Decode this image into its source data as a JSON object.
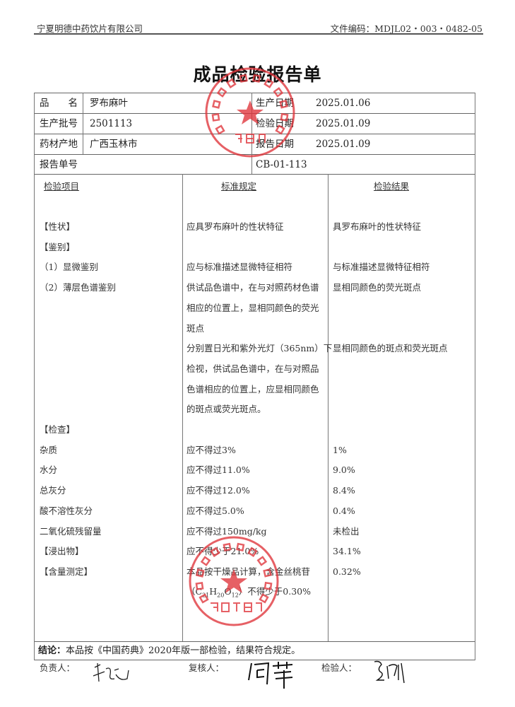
{
  "header": {
    "company": "宁夏明德中药饮片有限公司",
    "doc_code": "文件编码：MDJL02・003・0482-05"
  },
  "title": "成品检验报告单",
  "info": {
    "name_label": "品　　名",
    "name": "罗布麻叶",
    "batch_label": "生产批号",
    "batch": "2501113",
    "origin_label": "药材产地",
    "origin": "广西玉林市",
    "report_no_label": "报告单号",
    "report_no": "CB-01-113",
    "prod_date_label": "生产日期",
    "prod_date": "2025.01.06",
    "test_date_label": "检验日期",
    "test_date": "2025.01.09",
    "report_date_label": "报告日期",
    "report_date": "2025.01.09"
  },
  "columns": {
    "item": "检验项目",
    "standard": "标准规定",
    "result": "检验结果"
  },
  "lines": [
    {
      "item": "【性状】",
      "std": "应具罗布麻叶的性状特征",
      "res": "具罗布麻叶的性状特征"
    },
    {
      "item": "【鉴别】",
      "std": "",
      "res": ""
    },
    {
      "item": "（1）显微鉴别",
      "std": "应与标准描述显微特征相符",
      "res": "与标准描述显微特征相符"
    },
    {
      "item": "（2）薄层色谱鉴别",
      "std": "供试品色谱中，在与对照药材色谱",
      "res": "显相同颜色的荧光斑点"
    },
    {
      "item": "",
      "std": "相应的位置上，显相同颜色的荧光",
      "res": ""
    },
    {
      "item": "",
      "std": "斑点",
      "res": ""
    },
    {
      "item": "",
      "std": "分别置日光和紫外光灯（365nm）下",
      "res": "显相同颜色的斑点和荧光斑点"
    },
    {
      "item": "",
      "std": "检视，供试品色谱中，在与对照品",
      "res": ""
    },
    {
      "item": "",
      "std": "色谱相应的位置上，应显相同颜色",
      "res": ""
    },
    {
      "item": "",
      "std": "的斑点或荧光斑点。",
      "res": ""
    },
    {
      "item": "【检查】",
      "std": "",
      "res": ""
    },
    {
      "item": "杂质",
      "std": "应不得过3%",
      "res": "1%"
    },
    {
      "item": "水分",
      "std": "应不得过11.0%",
      "res": "9.0%"
    },
    {
      "item": "总灰分",
      "std": "应不得过12.0%",
      "res": "8.4%"
    },
    {
      "item": "酸不溶性灰分",
      "std": "应不得过5.0%",
      "res": "0.4%"
    },
    {
      "item": "二氧化硫残留量",
      "std": "应不得过150mg/kg",
      "res": "未检出"
    },
    {
      "item": "【浸出物】",
      "std": "应不得少于21.0%",
      "res": "34.1%"
    },
    {
      "item": "【含量测定】",
      "std": "本品按干燥品计算，含金丝桃苷",
      "res": "0.32%"
    }
  ],
  "formula_line": {
    "open": "（C",
    "s1": "21",
    "h": "H",
    "s2": "20",
    "o": "O",
    "s3": "12",
    "rest": "）不得少于0.30%"
  },
  "conclusion": {
    "label": "结论：",
    "text": "本品按《中国药典》2020年版一部检验，结果符合规定。"
  },
  "signatures": {
    "responsible_label": "负责人：",
    "responsible": "李廷",
    "reviewer_label": "复核人：",
    "reviewer": "何萍",
    "inspector_label": "检验人：",
    "inspector": "马丽"
  },
  "stamps": {
    "top": {
      "ring": "宁夏明德中药饮片有限公司",
      "center": "质量部"
    },
    "bottom": {
      "ring": "宁夏明德中药饮片有限公司",
      "center": "质检专用章"
    },
    "color": "#e0343a"
  }
}
